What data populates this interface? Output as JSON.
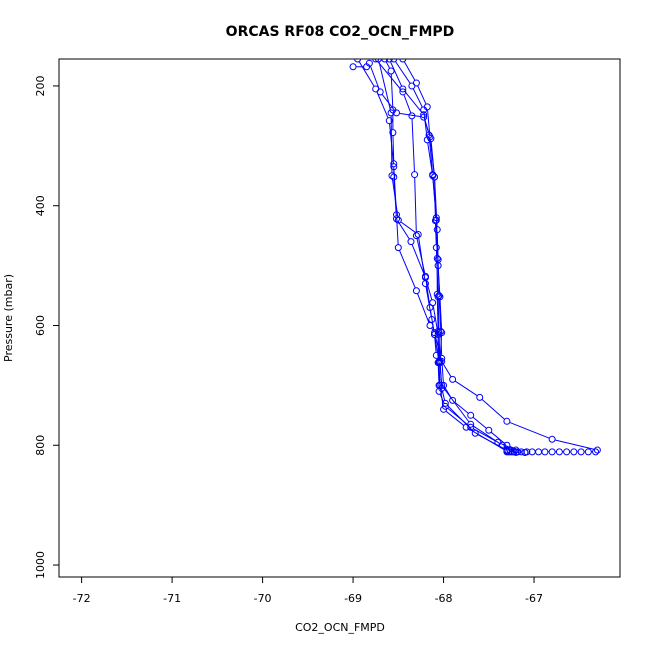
{
  "chart_data": {
    "type": "line",
    "title": "ORCAS RF08 CO2_OCN_FMPD",
    "xlabel": "CO2_OCN_FMPD",
    "ylabel": "Pressure (mbar)",
    "xlim": [
      -72.25,
      -66.05
    ],
    "ylim": [
      1020,
      155
    ],
    "y_inverted": true,
    "x_ticks": [
      -72,
      -71,
      -70,
      -69,
      -68,
      -67
    ],
    "y_ticks": [
      200,
      400,
      600,
      800,
      1000
    ],
    "grid": false,
    "color": "#0000ff",
    "marker": "open-circle",
    "series": [
      {
        "values": [
          [
            -68.95,
            155
          ],
          [
            -68.75,
            205
          ],
          [
            -68.6,
            258
          ],
          [
            -68.55,
            335
          ],
          [
            -68.52,
            415
          ],
          [
            -68.5,
            470
          ],
          [
            -68.3,
            542
          ],
          [
            -68.15,
            600
          ],
          [
            -68.1,
            612
          ],
          [
            -68.02,
            660
          ],
          [
            -67.9,
            690
          ],
          [
            -67.6,
            720
          ],
          [
            -67.3,
            760
          ],
          [
            -66.8,
            790
          ],
          [
            -66.3,
            808
          ]
        ]
      },
      {
        "values": [
          [
            -68.75,
            155
          ],
          [
            -68.45,
            210
          ],
          [
            -68.35,
            250
          ],
          [
            -68.32,
            348
          ],
          [
            -68.3,
            450
          ],
          [
            -68.2,
            518
          ],
          [
            -68.15,
            570
          ],
          [
            -68.1,
            615
          ],
          [
            -68.05,
            660
          ],
          [
            -68.05,
            710
          ],
          [
            -67.98,
            735
          ],
          [
            -67.7,
            770
          ],
          [
            -67.4,
            795
          ],
          [
            -67.2,
            808
          ]
        ]
      },
      {
        "values": [
          [
            -68.55,
            155
          ],
          [
            -68.35,
            200
          ],
          [
            -68.22,
            240
          ],
          [
            -68.18,
            290
          ],
          [
            -68.12,
            350
          ],
          [
            -68.08,
            420
          ],
          [
            -68.06,
            490
          ],
          [
            -68.05,
            550
          ],
          [
            -68.03,
            610
          ],
          [
            -68.02,
            655
          ],
          [
            -68.0,
            700
          ],
          [
            -67.9,
            725
          ],
          [
            -67.7,
            750
          ],
          [
            -67.5,
            775
          ],
          [
            -67.3,
            800
          ],
          [
            -67.1,
            812
          ]
        ]
      },
      {
        "values": [
          [
            -68.45,
            155
          ],
          [
            -68.3,
            195
          ],
          [
            -68.18,
            235
          ],
          [
            -68.15,
            285
          ],
          [
            -68.1,
            352
          ],
          [
            -68.07,
            440
          ],
          [
            -68.06,
            500
          ],
          [
            -68.04,
            552
          ],
          [
            -68.02,
            612
          ],
          [
            -68.04,
            660
          ],
          [
            -68.02,
            700
          ],
          [
            -67.7,
            765
          ],
          [
            -67.35,
            800
          ],
          [
            -67.2,
            812
          ]
        ]
      },
      {
        "values": [
          [
            -68.65,
            155
          ],
          [
            -68.58,
            175
          ],
          [
            -68.56,
            240
          ],
          [
            -68.56,
            278
          ],
          [
            -68.55,
            330
          ],
          [
            -68.55,
            352
          ],
          [
            -68.52,
            422
          ],
          [
            -68.36,
            460
          ],
          [
            -68.2,
            520
          ],
          [
            -68.12,
            562
          ],
          [
            -68.06,
            615
          ],
          [
            -68.05,
            662
          ],
          [
            -68.04,
            700
          ],
          [
            -68.0,
            740
          ],
          [
            -67.75,
            770
          ],
          [
            -67.3,
            810
          ],
          [
            -67.1,
            812
          ]
        ]
      },
      {
        "values": [
          [
            -68.6,
            155
          ],
          [
            -68.45,
            205
          ],
          [
            -68.22,
            248
          ],
          [
            -68.16,
            282
          ],
          [
            -68.12,
            348
          ],
          [
            -68.08,
            424
          ],
          [
            -68.07,
            488
          ],
          [
            -68.07,
            548
          ],
          [
            -68.06,
            610
          ],
          [
            -68.06,
            662
          ],
          [
            -68.05,
            700
          ]
        ]
      },
      {
        "values": [
          [
            -68.82,
            162
          ],
          [
            -68.7,
            210
          ],
          [
            -68.52,
            245
          ],
          [
            -68.22,
            252
          ],
          [
            -68.14,
            288
          ],
          [
            -68.1,
            352
          ],
          [
            -68.09,
            425
          ],
          [
            -68.08,
            470
          ],
          [
            -68.06,
            552
          ],
          [
            -68.05,
            612
          ],
          [
            -68.04,
            662
          ],
          [
            -68.02,
            705
          ],
          [
            -67.98,
            730
          ],
          [
            -67.65,
            780
          ],
          [
            -67.3,
            808
          ]
        ]
      },
      {
        "values": [
          [
            -68.72,
            155
          ],
          [
            -68.58,
            245
          ],
          [
            -68.57,
            350
          ],
          [
            -68.5,
            424
          ],
          [
            -68.28,
            448
          ],
          [
            -68.2,
            530
          ],
          [
            -68.13,
            590
          ],
          [
            -68.1,
            615
          ],
          [
            -68.08,
            650
          ]
        ]
      },
      {
        "values": [
          [
            -69.0,
            168
          ],
          [
            -68.85,
            168
          ]
        ]
      },
      {
        "values": [
          [
            -67.3,
            811
          ],
          [
            -67.28,
            811
          ],
          [
            -67.26,
            811
          ],
          [
            -67.24,
            811
          ],
          [
            -67.22,
            811
          ],
          [
            -67.18,
            811
          ],
          [
            -67.14,
            811
          ],
          [
            -67.08,
            811
          ],
          [
            -67.02,
            811
          ],
          [
            -66.95,
            811
          ],
          [
            -66.88,
            811
          ],
          [
            -66.8,
            811
          ],
          [
            -66.72,
            811
          ],
          [
            -66.64,
            811
          ],
          [
            -66.56,
            811
          ],
          [
            -66.48,
            811
          ],
          [
            -66.4,
            811
          ],
          [
            -66.32,
            811
          ]
        ]
      }
    ]
  }
}
